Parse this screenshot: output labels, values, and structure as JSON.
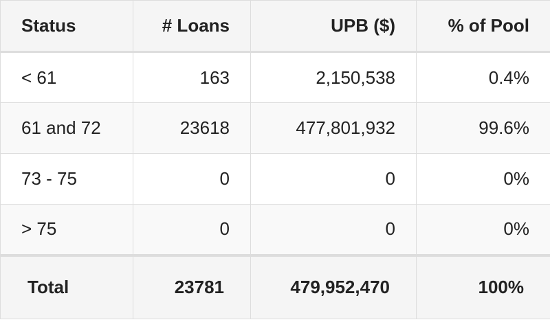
{
  "table": {
    "headers": [
      "Status",
      "# Loans",
      "UPB ($)",
      "% of Pool"
    ],
    "rows": [
      [
        "< 61",
        "163",
        "2,150,538",
        "0.4%"
      ],
      [
        "61 and 72",
        "23618",
        "477,801,932",
        "99.6%"
      ],
      [
        "73 - 75",
        "0",
        "0",
        "0%"
      ],
      [
        "> 75",
        "0",
        "0",
        "0%"
      ]
    ],
    "total": [
      "Total",
      "23781",
      "479,952,470",
      "100%"
    ]
  },
  "colors": {
    "border": "#dddddd",
    "header_bg": "#f5f5f5",
    "alt_row_bg": "#f9f9f9",
    "text": "#222222"
  }
}
